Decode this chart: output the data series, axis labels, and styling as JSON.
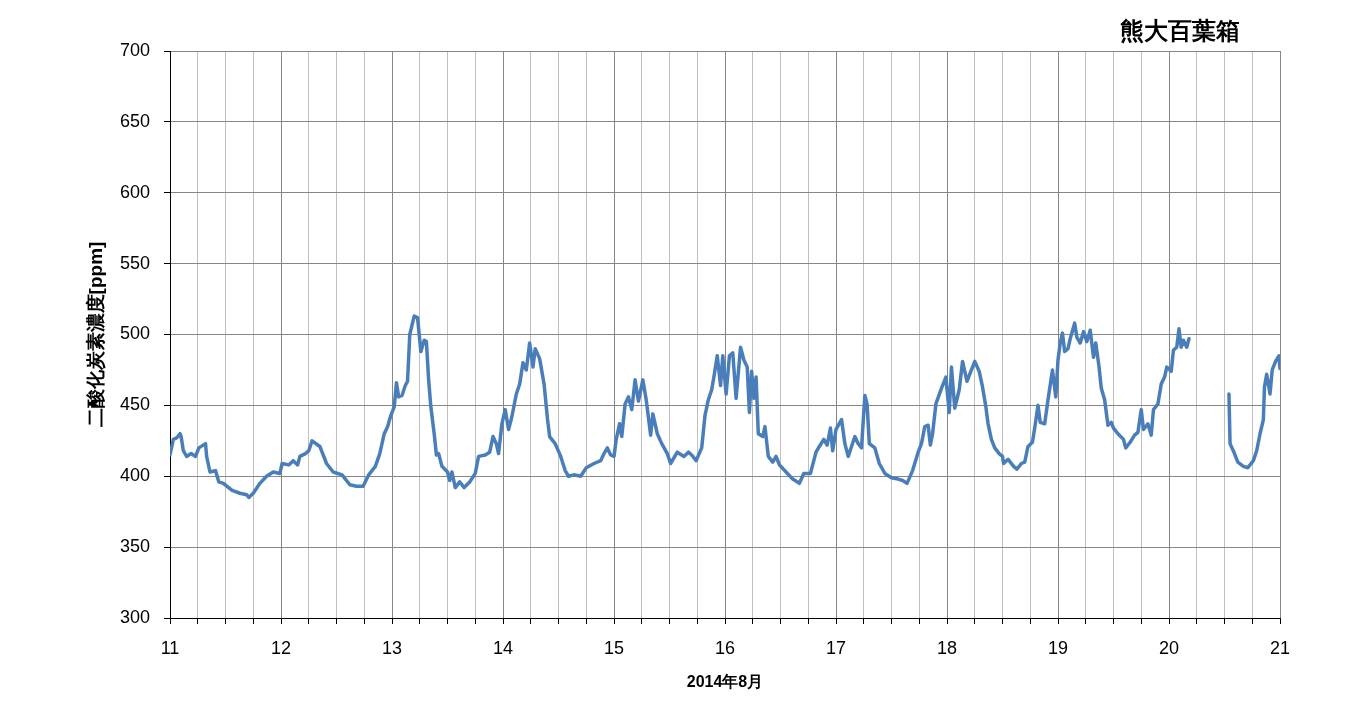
{
  "chart_data": {
    "type": "line",
    "title": "熊大百葉箱",
    "xlabel": "2014年8月",
    "ylabel": "二酸化炭素濃度[ppm]",
    "x": [
      11.0,
      11.03,
      11.06,
      11.09,
      11.1,
      11.12,
      11.15,
      11.19,
      11.23,
      11.26,
      11.32,
      11.33,
      11.36,
      11.41,
      11.44,
      11.48,
      11.56,
      11.63,
      11.69,
      11.71,
      11.75,
      11.81,
      11.87,
      11.93,
      11.99,
      12.01,
      12.07,
      12.11,
      12.15,
      12.17,
      12.22,
      12.25,
      12.28,
      12.35,
      12.41,
      12.47,
      12.55,
      12.62,
      12.68,
      12.74,
      12.79,
      12.85,
      12.89,
      12.93,
      12.96,
      12.99,
      13.02,
      13.04,
      13.06,
      13.09,
      13.12,
      13.14,
      13.16,
      13.2,
      13.23,
      13.26,
      13.29,
      13.31,
      13.33,
      13.35,
      13.38,
      13.4,
      13.42,
      13.45,
      13.5,
      13.52,
      13.54,
      13.57,
      13.61,
      13.65,
      13.7,
      13.75,
      13.78,
      13.84,
      13.88,
      13.91,
      13.94,
      13.96,
      13.99,
      14.02,
      14.05,
      14.08,
      14.12,
      14.15,
      14.18,
      14.21,
      14.24,
      14.27,
      14.29,
      14.33,
      14.37,
      14.4,
      14.42,
      14.47,
      14.52,
      14.56,
      14.59,
      14.64,
      14.7,
      14.75,
      14.82,
      14.88,
      14.91,
      14.94,
      14.97,
      15.0,
      15.02,
      15.05,
      15.07,
      15.1,
      15.13,
      15.16,
      15.19,
      15.22,
      15.26,
      15.29,
      15.33,
      15.35,
      15.39,
      15.43,
      15.48,
      15.51,
      15.57,
      15.63,
      15.67,
      15.7,
      15.74,
      15.79,
      15.82,
      15.85,
      15.88,
      15.9,
      15.93,
      15.96,
      15.98,
      16.01,
      16.04,
      16.07,
      16.1,
      16.14,
      16.17,
      16.2,
      16.22,
      16.24,
      16.26,
      16.28,
      16.3,
      16.34,
      16.36,
      16.39,
      16.43,
      16.46,
      16.49,
      16.55,
      16.61,
      16.67,
      16.71,
      16.77,
      16.82,
      16.85,
      16.89,
      16.92,
      16.95,
      16.97,
      17.0,
      17.05,
      17.08,
      17.11,
      17.14,
      17.17,
      17.2,
      17.23,
      17.26,
      17.28,
      17.3,
      17.35,
      17.39,
      17.44,
      17.5,
      17.56,
      17.6,
      17.64,
      17.69,
      17.74,
      17.77,
      17.8,
      17.83,
      17.85,
      17.87,
      17.9,
      17.95,
      17.99,
      18.02,
      18.04,
      18.07,
      18.11,
      18.14,
      18.18,
      18.22,
      18.25,
      18.29,
      18.32,
      18.35,
      18.37,
      18.4,
      18.43,
      18.47,
      18.5,
      18.51,
      18.55,
      18.6,
      18.63,
      18.67,
      18.7,
      18.73,
      18.77,
      18.79,
      18.82,
      18.84,
      18.88,
      18.91,
      18.95,
      18.98,
      19.0,
      19.02,
      19.04,
      19.06,
      19.09,
      19.11,
      19.15,
      19.17,
      19.2,
      19.23,
      19.26,
      19.29,
      19.32,
      19.34,
      19.37,
      19.39,
      19.42,
      19.45,
      19.48,
      19.5,
      19.54,
      19.59,
      19.61,
      19.65,
      19.69,
      19.72,
      19.75,
      19.77,
      19.81,
      19.84,
      19.86,
      19.9,
      19.93,
      19.96,
      19.98,
      20.02,
      20.04,
      20.07,
      20.09,
      20.11,
      20.13,
      20.16,
      20.18,
      20.36,
      20.54,
      20.55,
      20.59,
      20.62,
      20.67,
      20.71,
      20.76,
      20.79,
      20.82,
      20.85,
      20.86,
      20.88,
      20.91,
      20.93,
      20.96,
      20.99,
      21.0
    ],
    "values": [
      415,
      426,
      427,
      430,
      428,
      418,
      414,
      416,
      414,
      420,
      423,
      414,
      403,
      404,
      396,
      395,
      390,
      388,
      387,
      385,
      388,
      395,
      400,
      403,
      402,
      409,
      408,
      411,
      408,
      414,
      416,
      418,
      425,
      421,
      409,
      403,
      401,
      394,
      393,
      393,
      401,
      407,
      416,
      430,
      435,
      443,
      449,
      466,
      456,
      457,
      464,
      467,
      500,
      513,
      512,
      488,
      496,
      495,
      468,
      449,
      430,
      415,
      416,
      407,
      403,
      397,
      403,
      392,
      396,
      392,
      396,
      402,
      414,
      415,
      417,
      428,
      423,
      416,
      437,
      447,
      433,
      442,
      458,
      465,
      480,
      475,
      494,
      477,
      490,
      483,
      465,
      441,
      428,
      423,
      414,
      404,
      400,
      401,
      400,
      406,
      409,
      411,
      416,
      420,
      415,
      414,
      426,
      437,
      428,
      451,
      456,
      447,
      468,
      453,
      468,
      454,
      429,
      444,
      430,
      423,
      416,
      409,
      417,
      414,
      417,
      415,
      411,
      420,
      443,
      454,
      461,
      470,
      485,
      464,
      485,
      458,
      485,
      487,
      455,
      491,
      482,
      477,
      445,
      474,
      455,
      470,
      430,
      428,
      435,
      414,
      410,
      414,
      408,
      403,
      398,
      395,
      402,
      402,
      417,
      421,
      426,
      422,
      434,
      418,
      433,
      440,
      423,
      414,
      421,
      428,
      423,
      420,
      457,
      451,
      423,
      420,
      409,
      402,
      399,
      398,
      397,
      395,
      404,
      417,
      423,
      435,
      436,
      422,
      430,
      451,
      462,
      470,
      445,
      477,
      448,
      461,
      481,
      467,
      475,
      481,
      474,
      463,
      449,
      437,
      426,
      420,
      416,
      414,
      409,
      412,
      407,
      405,
      409,
      410,
      421,
      424,
      434,
      450,
      438,
      437,
      454,
      475,
      456,
      482,
      494,
      501,
      488,
      490,
      497,
      508,
      498,
      494,
      502,
      495,
      503,
      484,
      494,
      477,
      462,
      454,
      436,
      438,
      434,
      430,
      426,
      420,
      424,
      429,
      431,
      447,
      433,
      437,
      429,
      447,
      451,
      465,
      470,
      477,
      474,
      489,
      491,
      504,
      491,
      496,
      491,
      497,
      null,
      458,
      423,
      416,
      410,
      407,
      406,
      411,
      418,
      430,
      440,
      463,
      472,
      458,
      475,
      481,
      485,
      476
    ],
    "color": "#4a7ebb",
    "marker": "none",
    "xlim": [
      11,
      21
    ],
    "xticks": [
      11,
      {
        "value": 11.25,
        "label": null
      },
      {
        "value": 11.5,
        "label": null
      },
      {
        "value": 11.75,
        "label": null
      },
      12,
      {
        "value": 12.25,
        "label": null
      },
      {
        "value": 12.5,
        "label": null
      },
      {
        "value": 12.75,
        "label": null
      },
      13,
      {
        "value": 13.25,
        "label": null
      },
      {
        "value": 13.5,
        "label": null
      },
      {
        "value": 13.75,
        "label": null
      },
      14,
      {
        "value": 14.25,
        "label": null
      },
      {
        "value": 14.5,
        "label": null
      },
      {
        "value": 14.75,
        "label": null
      },
      15,
      {
        "value": 15.25,
        "label": null
      },
      {
        "value": 15.5,
        "label": null
      },
      {
        "value": 15.75,
        "label": null
      },
      16,
      {
        "value": 16.25,
        "label": null
      },
      {
        "value": 16.5,
        "label": null
      },
      {
        "value": 16.75,
        "label": null
      },
      17,
      {
        "value": 17.25,
        "label": null
      },
      {
        "value": 17.5,
        "label": null
      },
      {
        "value": 17.75,
        "label": null
      },
      18,
      {
        "value": 18.25,
        "label": null
      },
      {
        "value": 18.5,
        "label": null
      },
      {
        "value": 18.75,
        "label": null
      },
      19,
      {
        "value": 19.25,
        "label": null
      },
      {
        "value": 19.5,
        "label": null
      },
      {
        "value": 19.75,
        "label": null
      },
      20,
      {
        "value": 20.25,
        "label": null
      },
      {
        "value": 20.5,
        "label": null
      },
      {
        "value": 20.75,
        "label": null
      },
      21
    ],
    "ylim": [
      300,
      700
    ],
    "yticks": [
      300,
      350,
      400,
      450,
      500,
      550,
      600,
      650,
      700
    ],
    "grid": true
  }
}
